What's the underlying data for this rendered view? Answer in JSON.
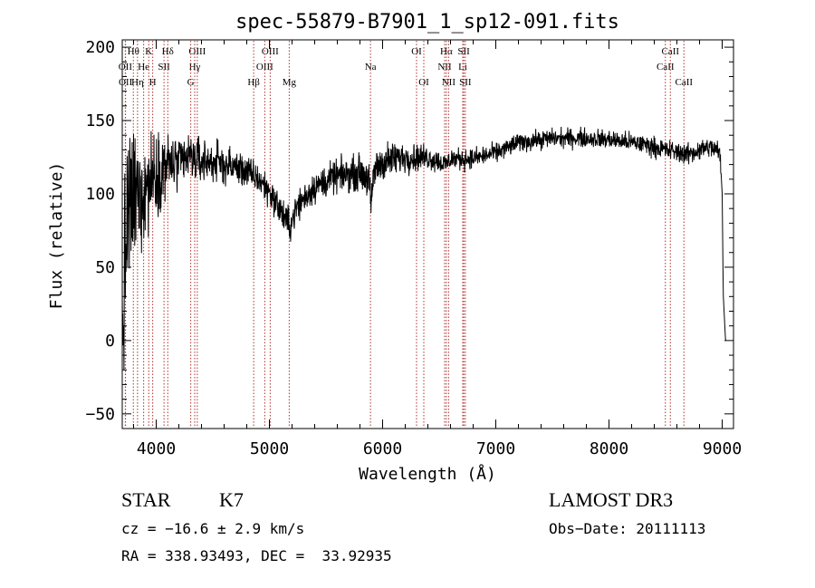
{
  "chart_data": {
    "type": "line",
    "title": "spec-55879-B7901_1_sp12-091.fits",
    "xlabel": "Wavelength (Å)",
    "ylabel": "Flux (relative)",
    "xlim": [
      3700,
      9100
    ],
    "ylim": [
      -60,
      205
    ],
    "x_ticks": [
      4000,
      5000,
      6000,
      7000,
      8000,
      9000
    ],
    "x_tick_labels": [
      "4000",
      "5000",
      "6000",
      "7000",
      "8000",
      "9000"
    ],
    "y_ticks": [
      -50,
      0,
      50,
      100,
      150,
      200
    ],
    "y_tick_labels": [
      "−50",
      "0",
      "50",
      "100",
      "150",
      "200"
    ],
    "x_minor_step": 200,
    "y_minor_step": 10,
    "series": [
      {
        "name": "flux",
        "color": "#000000",
        "continuum": [
          [
            3700,
            0
          ],
          [
            3740,
            80
          ],
          [
            3800,
            95
          ],
          [
            3900,
            105
          ],
          [
            4000,
            115
          ],
          [
            4100,
            120
          ],
          [
            4200,
            120
          ],
          [
            4300,
            125
          ],
          [
            4400,
            122
          ],
          [
            4500,
            122
          ],
          [
            4600,
            120
          ],
          [
            4700,
            118
          ],
          [
            4800,
            115
          ],
          [
            4900,
            110
          ],
          [
            5000,
            102
          ],
          [
            5100,
            88
          ],
          [
            5180,
            78
          ],
          [
            5250,
            92
          ],
          [
            5400,
            105
          ],
          [
            5600,
            112
          ],
          [
            5800,
            115
          ],
          [
            5880,
            110
          ],
          [
            5900,
            88
          ],
          [
            5920,
            115
          ],
          [
            6000,
            122
          ],
          [
            6200,
            125
          ],
          [
            6400,
            125
          ],
          [
            6560,
            120
          ],
          [
            6600,
            124
          ],
          [
            6800,
            124
          ],
          [
            7000,
            128
          ],
          [
            7200,
            135
          ],
          [
            7500,
            138
          ],
          [
            7800,
            138
          ],
          [
            8000,
            137
          ],
          [
            8300,
            134
          ],
          [
            8500,
            130
          ],
          [
            8700,
            127
          ],
          [
            8800,
            130
          ],
          [
            8900,
            132
          ],
          [
            8980,
            128
          ],
          [
            9000,
            100
          ],
          [
            9010,
            30
          ],
          [
            9030,
            0
          ]
        ],
        "noise": [
          [
            3700,
            70
          ],
          [
            3900,
            40
          ],
          [
            4000,
            30
          ],
          [
            4200,
            20
          ],
          [
            4500,
            15
          ],
          [
            4800,
            12
          ],
          [
            5200,
            12
          ],
          [
            5600,
            12
          ],
          [
            6000,
            14
          ],
          [
            6300,
            10
          ],
          [
            6600,
            8
          ],
          [
            7000,
            7
          ],
          [
            8000,
            7
          ],
          [
            9000,
            8
          ]
        ]
      }
    ],
    "line_markers": [
      {
        "label": "Hθ",
        "x": 3798,
        "row": 1
      },
      {
        "label": "OII",
        "x": 3727,
        "row": 2
      },
      {
        "label": "OII",
        "x": 3729,
        "row": 3
      },
      {
        "label": "Hη",
        "x": 3835,
        "row": 3
      },
      {
        "label": "K",
        "x": 3934,
        "row": 1
      },
      {
        "label": "He",
        "x": 3889,
        "row": 2
      },
      {
        "label": "H",
        "x": 3969,
        "row": 3
      },
      {
        "label": "SII",
        "x": 4069,
        "row": 2
      },
      {
        "label": "Hδ",
        "x": 4102,
        "row": 1
      },
      {
        "label": "OIII",
        "x": 4363,
        "row": 1
      },
      {
        "label": "Hγ",
        "x": 4340,
        "row": 2
      },
      {
        "label": "G",
        "x": 4305,
        "row": 3
      },
      {
        "label": "Hβ",
        "x": 4861,
        "row": 3
      },
      {
        "label": "OIII",
        "x": 5007,
        "row": 1
      },
      {
        "label": "OIII",
        "x": 4959,
        "row": 2
      },
      {
        "label": "Mg",
        "x": 5175,
        "row": 3
      },
      {
        "label": "Na",
        "x": 5893,
        "row": 2
      },
      {
        "label": "OI",
        "x": 6300,
        "row": 1
      },
      {
        "label": "OI",
        "x": 6364,
        "row": 3
      },
      {
        "label": "Hα",
        "x": 6563,
        "row": 1
      },
      {
        "label": "NII",
        "x": 6548,
        "row": 2
      },
      {
        "label": "NII",
        "x": 6583,
        "row": 3
      },
      {
        "label": "SII",
        "x": 6717,
        "row": 1
      },
      {
        "label": "Li",
        "x": 6708,
        "row": 2
      },
      {
        "label": "SII",
        "x": 6731,
        "row": 3
      },
      {
        "label": "CaII",
        "x": 8542,
        "row": 1
      },
      {
        "label": "CaII",
        "x": 8498,
        "row": 2
      },
      {
        "label": "CaII",
        "x": 8662,
        "row": 3
      }
    ]
  },
  "info": {
    "object_class": "STAR",
    "subclass": "K7",
    "survey": "LAMOST DR3",
    "redshift": "cz = −16.6 ± 2.9 km/s",
    "obs_date": "Obs−Date: 20111113",
    "coords": "RA = 338.93493, DEC =  33.92935"
  },
  "colors": {
    "line_marker": "#b03030",
    "axis": "#000000"
  }
}
